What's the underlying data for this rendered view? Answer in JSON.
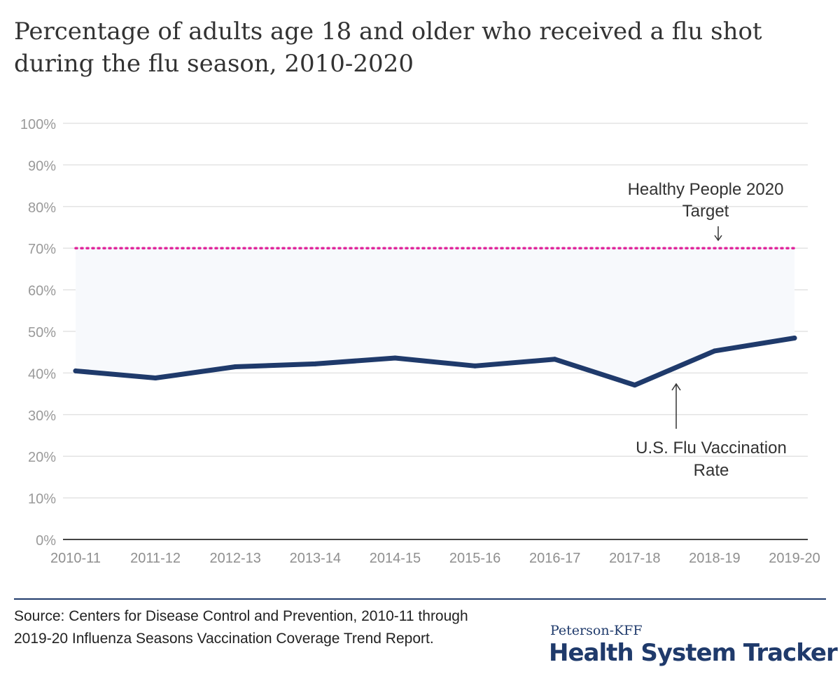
{
  "title": "Percentage of adults age 18 and older who received a flu shot during the flu season, 2010-2020",
  "chart_data": {
    "type": "line",
    "categories": [
      "2010-11",
      "2011-12",
      "2012-13",
      "2013-14",
      "2014-15",
      "2015-16",
      "2016-17",
      "2017-18",
      "2018-19",
      "2019-20"
    ],
    "series": [
      {
        "name": "U.S. Flu Vaccination Rate",
        "values": [
          40.5,
          38.8,
          41.5,
          42.2,
          43.6,
          41.7,
          43.3,
          37.1,
          45.3,
          48.4
        ],
        "color": "#1f3a6b"
      }
    ],
    "target": {
      "name": "Healthy People 2020 Target",
      "value": 70,
      "color": "#e0269c",
      "style": "dotted"
    },
    "y_ticks": [
      "0%",
      "10%",
      "20%",
      "30%",
      "40%",
      "50%",
      "60%",
      "70%",
      "80%",
      "90%",
      "100%"
    ],
    "ylim": [
      0,
      100
    ],
    "grid": true,
    "annotations": [
      {
        "text_lines": [
          "Healthy People 2020",
          "Target"
        ],
        "points_to": "target",
        "arrow": "down"
      },
      {
        "text_lines": [
          "U.S. Flu Vaccination",
          "Rate"
        ],
        "points_to": "series",
        "arrow": "up"
      }
    ],
    "shading": {
      "between": "series-and-target",
      "color": "#f7f9fc"
    }
  },
  "source": "Source: Centers for Disease Control and Prevention, 2010-11 through 2019-20 Influenza Seasons Vaccination Coverage Trend Report.",
  "brand": {
    "small": "Peterson-KFF",
    "big": "Health System Tracker"
  }
}
